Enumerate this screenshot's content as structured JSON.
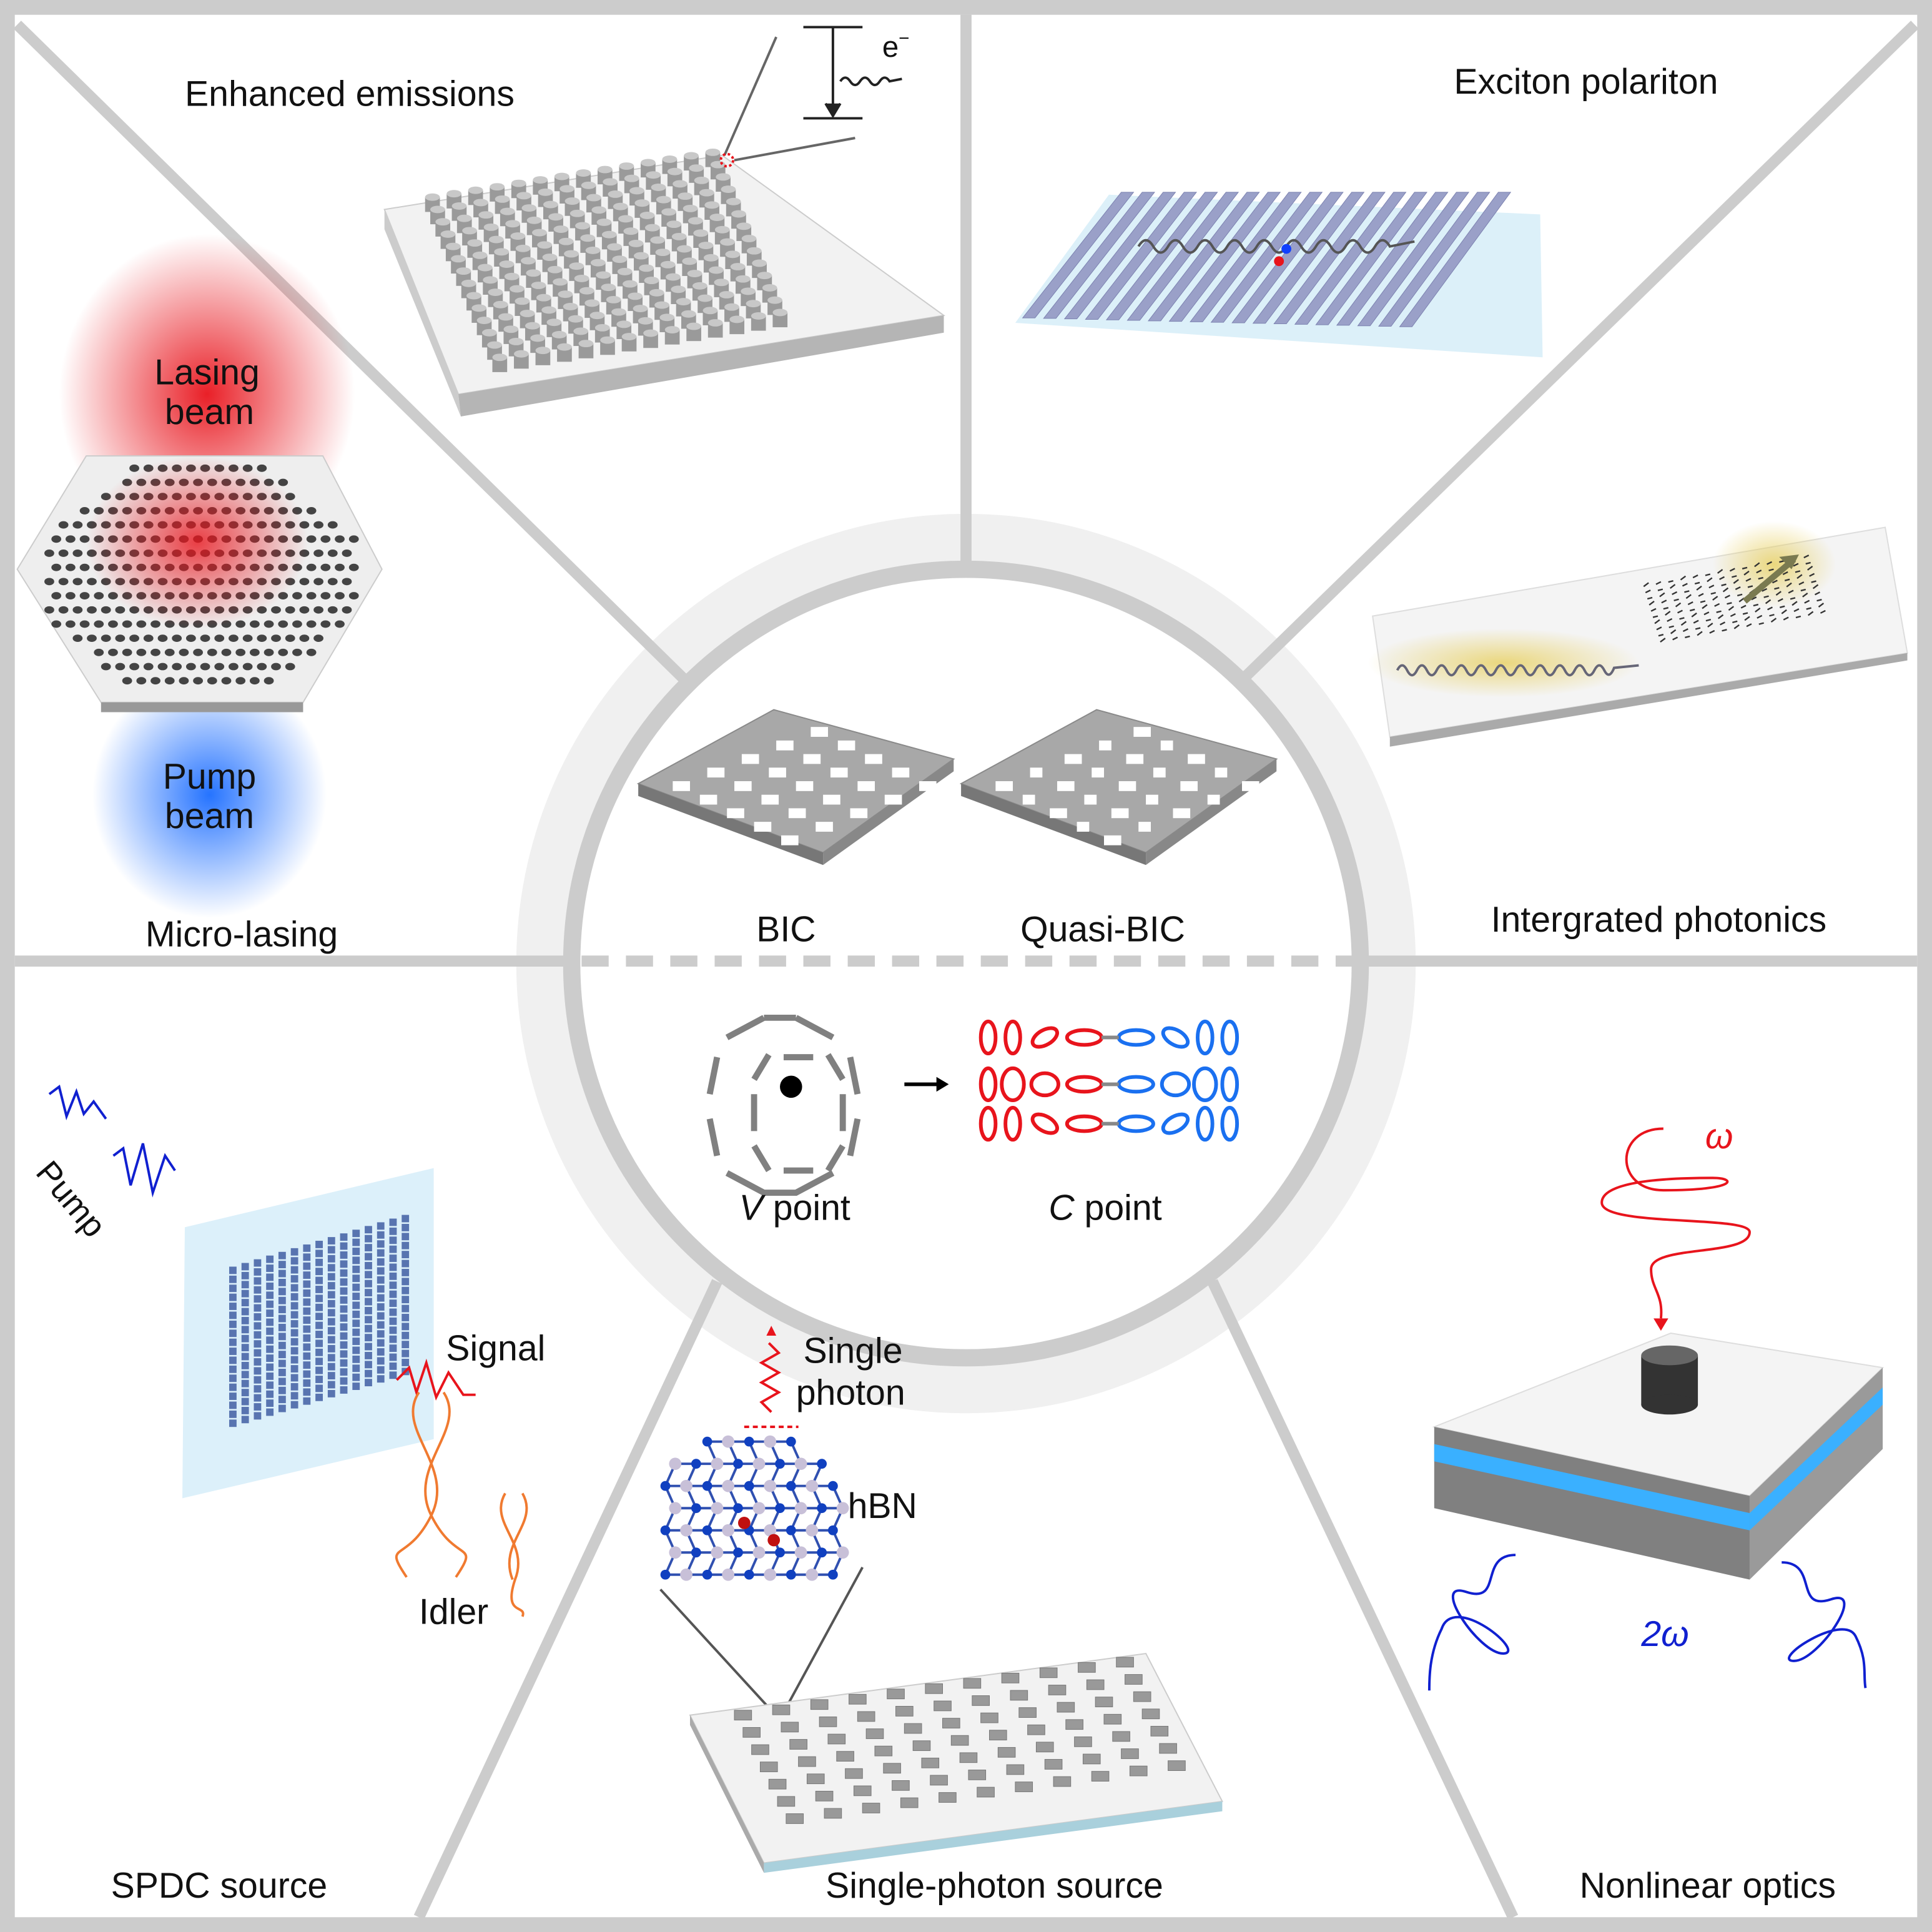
{
  "panels": {
    "enhanced_emissions": {
      "title": "Enhanced emissions",
      "electron": "e",
      "electron_sup": "−"
    },
    "exciton_polariton": {
      "title": "Exciton polariton"
    },
    "micro_lasing": {
      "title": "Micro-lasing",
      "lasing_beam": [
        "Lasing",
        "beam"
      ],
      "pump_beam": [
        "Pump",
        "beam"
      ]
    },
    "integrated_photonics": {
      "title": "Intergrated photonics"
    },
    "center": {
      "bic": "BIC",
      "quasi_bic": "Quasi-BIC",
      "v_point_italic": "V",
      "v_point": " point",
      "c_point_italic": "C",
      "c_point": " point"
    },
    "spdc": {
      "title": "SPDC source",
      "pump": "Pump",
      "signal": "Signal",
      "idler": "Idler"
    },
    "single_photon": {
      "title": "Single-photon source",
      "photon": [
        "Single",
        "photon"
      ],
      "material": "hBN"
    },
    "nonlinear": {
      "title": "Nonlinear optics",
      "omega": "ω",
      "two_omega": "2ω"
    }
  },
  "colors": {
    "frame": "#cccccc",
    "red": "#e8141c",
    "blue": "#1060ff",
    "dark_blue": "#1020d0",
    "orange": "#f07a30",
    "gray": "#a8a8a8"
  }
}
